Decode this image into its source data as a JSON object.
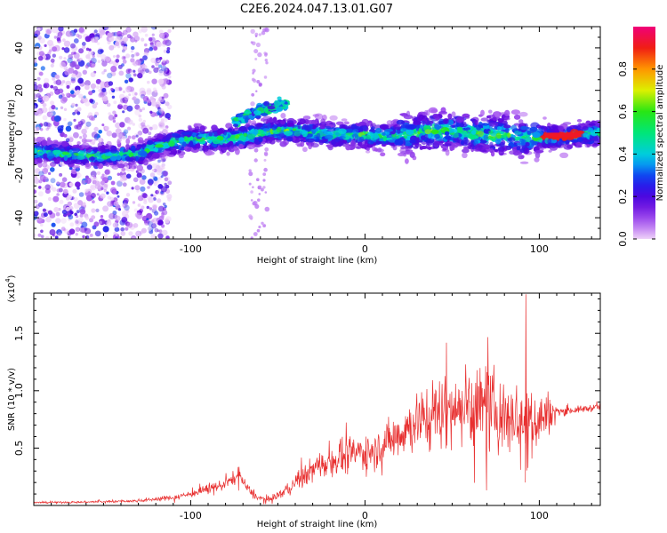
{
  "title": "C2E6.2024.047.13.01.G07",
  "chart_data": [
    {
      "type": "heatmap",
      "xlabel": "Height of straight line (km)",
      "ylabel": "Frequency (Hz)",
      "xlim": [
        -190,
        135
      ],
      "ylim": [
        -50,
        50
      ],
      "xticks": [
        -100,
        0,
        100
      ],
      "yticks": [
        -40,
        -20,
        0,
        20,
        40
      ],
      "colorbar": {
        "label": "Normalized spectral amplitude",
        "range": [
          0,
          1
        ],
        "ticks": [
          "0.0",
          "0.2",
          "0.4",
          "0.6",
          "0.8"
        ]
      },
      "ridge": {
        "x": [
          -188,
          -170,
          -150,
          -130,
          -115,
          -100,
          -85,
          -70,
          -60,
          -50,
          -40,
          -30,
          -20,
          -10,
          0,
          10,
          20,
          30,
          40,
          50,
          60,
          70,
          80,
          90,
          100,
          110,
          120,
          135
        ],
        "y": [
          -9,
          -10,
          -11,
          -10,
          -5,
          -3,
          -3,
          -2,
          0,
          1,
          1,
          0,
          -1,
          -1,
          -1,
          -2,
          -1,
          0,
          1,
          1,
          0,
          -1,
          -1,
          -2,
          -2,
          -2,
          -1,
          0
        ]
      },
      "upper_branch": {
        "x": [
          -75,
          -65,
          -55,
          -45
        ],
        "y": [
          5,
          9,
          12,
          14
        ]
      }
    },
    {
      "type": "line",
      "xlabel": "Height of straight line (km)",
      "ylabel": "SNR (10 * v/v)",
      "y_multiplier": "(x10",
      "y_multiplier_exp": "4",
      "xlim": [
        -190,
        135
      ],
      "ylim": [
        0,
        18500
      ],
      "xticks": [
        -100,
        0,
        100
      ],
      "yticks": [
        "0.5",
        "1.0",
        "1.5"
      ],
      "series": [
        {
          "x": [
            -190,
            -160,
            -130,
            -110,
            -100,
            -90,
            -80,
            -72,
            -68,
            -62,
            -55,
            -45,
            -35,
            -25,
            -15,
            -5,
            0,
            10,
            20,
            30,
            40,
            50,
            60,
            70,
            80,
            90,
            100,
            105,
            110,
            120,
            135
          ],
          "mean": [
            250,
            300,
            400,
            700,
            1000,
            1400,
            1900,
            2600,
            1600,
            700,
            500,
            1300,
            2600,
            3600,
            4200,
            4600,
            4700,
            5200,
            6300,
            7400,
            8100,
            8600,
            8600,
            8300,
            8000,
            7500,
            7500,
            8000,
            8200,
            8300,
            8600
          ],
          "spread": [
            100,
            100,
            150,
            300,
            400,
            500,
            600,
            800,
            600,
            300,
            300,
            600,
            1200,
            1600,
            1800,
            2000,
            2000,
            2200,
            2800,
            3300,
            3800,
            4300,
            4600,
            4600,
            4400,
            4000,
            3500,
            2500,
            500,
            400,
            400
          ]
        }
      ]
    }
  ]
}
